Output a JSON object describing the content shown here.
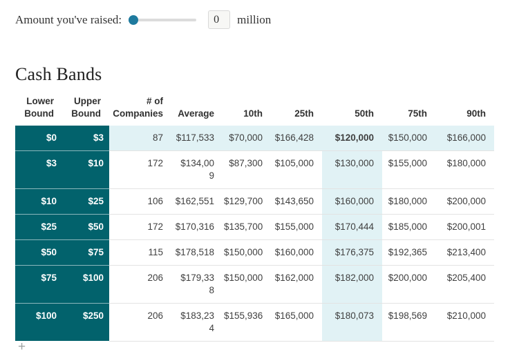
{
  "controls": {
    "label": "Amount you've raised:",
    "value": "0",
    "unit": "million",
    "slider_position_percent": 0
  },
  "section": {
    "title": "Cash Bands"
  },
  "table": {
    "columns": [
      "Lower Bound",
      "Upper Bound",
      "# of Companies",
      "Average",
      "10th",
      "25th",
      "50th",
      "75th",
      "90th"
    ],
    "rows": [
      {
        "lower": "$0",
        "upper": "$3",
        "companies": "87",
        "average": "$117,533",
        "average_wraps": false,
        "p10": "$70,000",
        "p25": "$166,428",
        "p50": "$120,000",
        "p75": "$150,000",
        "p90": "$166,000",
        "active": true
      },
      {
        "lower": "$3",
        "upper": "$10",
        "companies": "172",
        "average": "$134,009",
        "average_wraps": true,
        "p10": "$87,300",
        "p25": "$105,000",
        "p50": "$130,000",
        "p75": "$155,000",
        "p90": "$180,000",
        "active": false
      },
      {
        "lower": "$10",
        "upper": "$25",
        "companies": "106",
        "average": "$162,551",
        "average_wraps": false,
        "p10": "$129,700",
        "p25": "$143,650",
        "p50": "$160,000",
        "p75": "$180,000",
        "p90": "$200,000",
        "active": false
      },
      {
        "lower": "$25",
        "upper": "$50",
        "companies": "172",
        "average": "$170,316",
        "average_wraps": false,
        "p10": "$135,700",
        "p25": "$155,000",
        "p50": "$170,444",
        "p75": "$185,000",
        "p90": "$200,001",
        "active": false
      },
      {
        "lower": "$50",
        "upper": "$75",
        "companies": "115",
        "average": "$178,518",
        "average_wraps": false,
        "p10": "$150,000",
        "p25": "$160,000",
        "p50": "$176,375",
        "p75": "$192,365",
        "p90": "$213,400",
        "active": false
      },
      {
        "lower": "$75",
        "upper": "$100",
        "companies": "206",
        "average": "$179,338",
        "average_wraps": true,
        "p10": "$150,000",
        "p25": "$162,000",
        "p50": "$182,000",
        "p75": "$200,000",
        "p90": "$205,400",
        "active": false
      },
      {
        "lower": "$100",
        "upper": "$250",
        "companies": "206",
        "average": "$183,234",
        "average_wraps": true,
        "p10": "$155,936",
        "p25": "$165,000",
        "p50": "$180,073",
        "p75": "$198,569",
        "p90": "$210,000",
        "active": false
      }
    ]
  },
  "expander": {
    "symbol": "+"
  },
  "colors": {
    "band_teal": "#02626c",
    "highlight_cyan": "#e1f2f5",
    "slider_handle": "#1e7a9e",
    "row_border": "#e3e3e3"
  }
}
